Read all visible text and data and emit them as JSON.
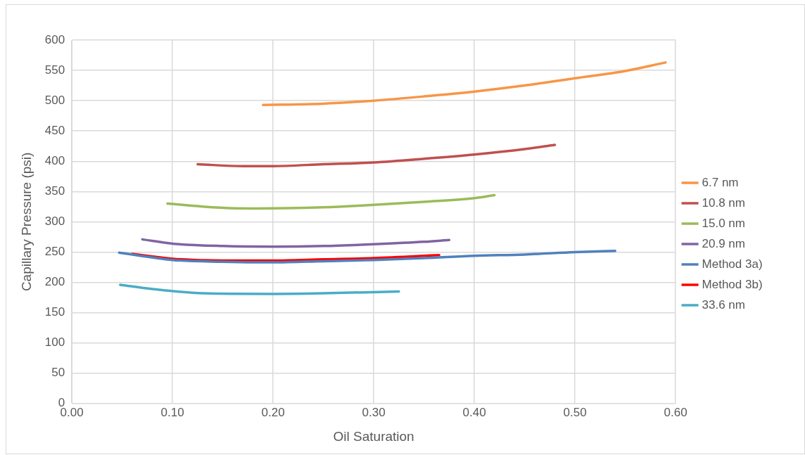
{
  "chart_data": {
    "type": "line",
    "xlabel": "Oil Saturation",
    "ylabel": "Capillary Pressure (psi)",
    "xlim": [
      0,
      0.6
    ],
    "xticks": [
      {
        "value": 0,
        "label": "0.00"
      },
      {
        "value": 0.1,
        "label": "0.10"
      },
      {
        "value": 0.2,
        "label": "0.20"
      },
      {
        "value": 0.3,
        "label": "0.30"
      },
      {
        "value": 0.4,
        "label": "0.40"
      },
      {
        "value": 0.5,
        "label": "0.50"
      },
      {
        "value": 0.6,
        "label": "0.60"
      }
    ],
    "ylim": [
      0,
      600
    ],
    "yticks": [
      0,
      50,
      100,
      150,
      200,
      250,
      300,
      350,
      400,
      450,
      500,
      550,
      600
    ],
    "grid": true,
    "legend": "right",
    "marker": "none",
    "line_style": "solid",
    "series": [
      {
        "name": "6.7 nm",
        "color": "#f79646",
        "x": [
          0.19,
          0.25,
          0.3,
          0.35,
          0.4,
          0.45,
          0.5,
          0.55,
          0.59
        ],
        "values": [
          493,
          495,
          500,
          507,
          515,
          525,
          537,
          549,
          563
        ]
      },
      {
        "name": "10.8 nm",
        "color": "#c0504d",
        "x": [
          0.125,
          0.17,
          0.2,
          0.25,
          0.3,
          0.35,
          0.4,
          0.45,
          0.48
        ],
        "values": [
          395,
          392,
          392,
          395,
          398,
          404,
          411,
          420,
          427
        ]
      },
      {
        "name": "15.0 nm",
        "color": "#9bbb59",
        "x": [
          0.095,
          0.15,
          0.18,
          0.25,
          0.3,
          0.35,
          0.4,
          0.42
        ],
        "values": [
          330,
          323,
          322,
          324,
          328,
          333,
          339,
          344
        ]
      },
      {
        "name": "20.9 nm",
        "color": "#8064a2",
        "x": [
          0.07,
          0.1,
          0.15,
          0.2,
          0.25,
          0.3,
          0.35,
          0.375
        ],
        "values": [
          271,
          264,
          260,
          259,
          260,
          263,
          267,
          270
        ]
      },
      {
        "name": "Method 3a)",
        "color": "#4f81bd",
        "x": [
          0.047,
          0.1,
          0.15,
          0.2,
          0.25,
          0.3,
          0.35,
          0.4,
          0.45,
          0.5,
          0.54
        ],
        "values": [
          249,
          237,
          234,
          233,
          235,
          237,
          240,
          244,
          246,
          250,
          252
        ]
      },
      {
        "name": "Method 3b)",
        "color": "#ff0000",
        "x": [
          0.06,
          0.1,
          0.15,
          0.2,
          0.25,
          0.3,
          0.365
        ],
        "values": [
          247,
          239,
          236,
          236,
          238,
          240,
          245
        ]
      },
      {
        "name": "33.6 nm",
        "color": "#4bacc6",
        "x": [
          0.048,
          0.08,
          0.13,
          0.2,
          0.25,
          0.325
        ],
        "values": [
          196,
          189,
          182,
          181,
          182,
          185
        ]
      }
    ]
  }
}
